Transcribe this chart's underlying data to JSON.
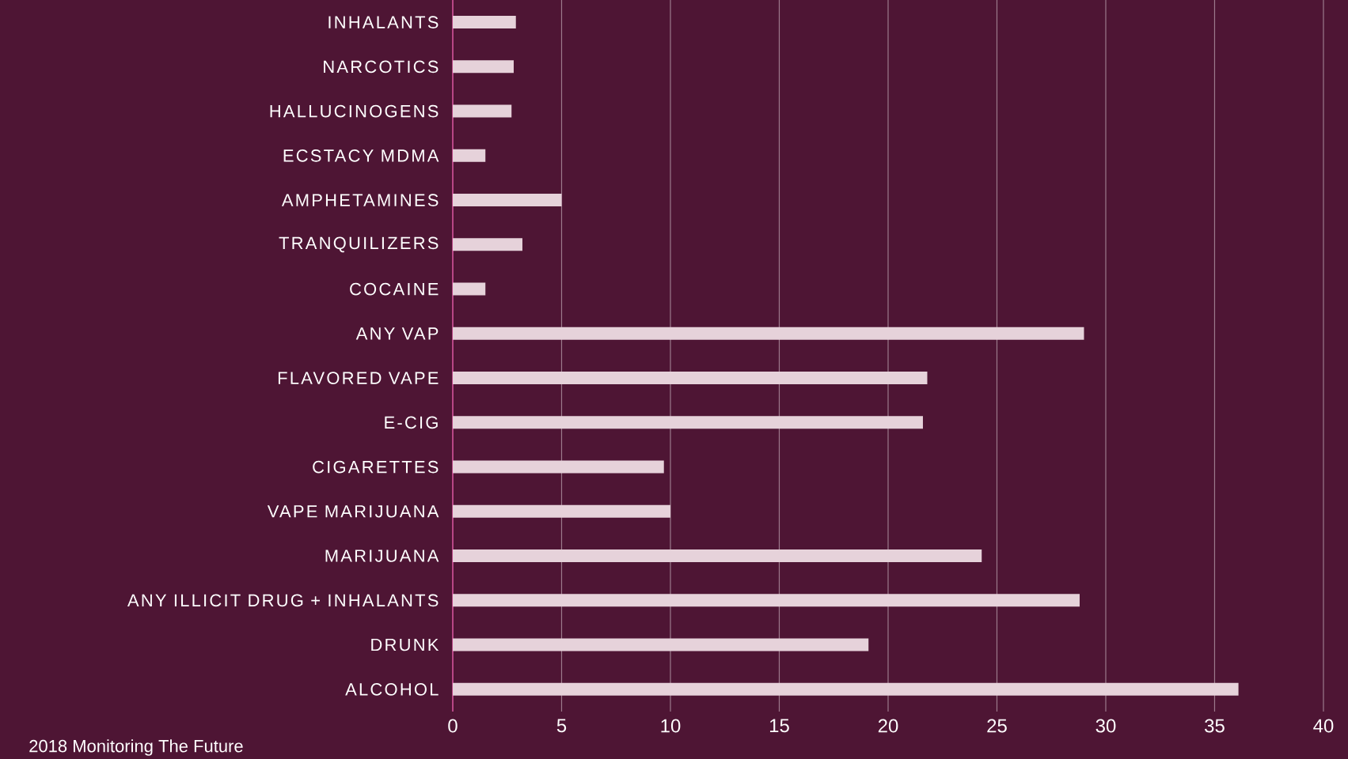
{
  "chart_data": {
    "type": "bar",
    "orientation": "horizontal",
    "categories": [
      "INHALANTS",
      "NARCOTICS",
      "HALLUCINOGENS",
      "ECSTACY MDMA",
      "AMPHETAMINES",
      "TRANQUILIZERS",
      "COCAINE",
      "ANY VAP",
      "FLAVORED VAPE",
      "E-CIG",
      "CIGARETTES",
      "VAPE MARIJUANA",
      "MARIJUANA",
      "ANY ILLICIT DRUG + INHALANTS",
      "DRUNK",
      "ALCOHOL"
    ],
    "values": [
      2.9,
      2.8,
      2.7,
      1.5,
      5.0,
      3.2,
      1.5,
      29.0,
      21.8,
      21.6,
      9.7,
      10.0,
      24.3,
      28.8,
      19.1,
      36.1
    ],
    "color": "#e6d2da",
    "xlim": [
      0,
      40
    ],
    "xticks": [
      0,
      5,
      10,
      15,
      20,
      25,
      30,
      35,
      40
    ],
    "grid": "x",
    "annotations": [
      "2018 Monitoring The Future"
    ]
  }
}
